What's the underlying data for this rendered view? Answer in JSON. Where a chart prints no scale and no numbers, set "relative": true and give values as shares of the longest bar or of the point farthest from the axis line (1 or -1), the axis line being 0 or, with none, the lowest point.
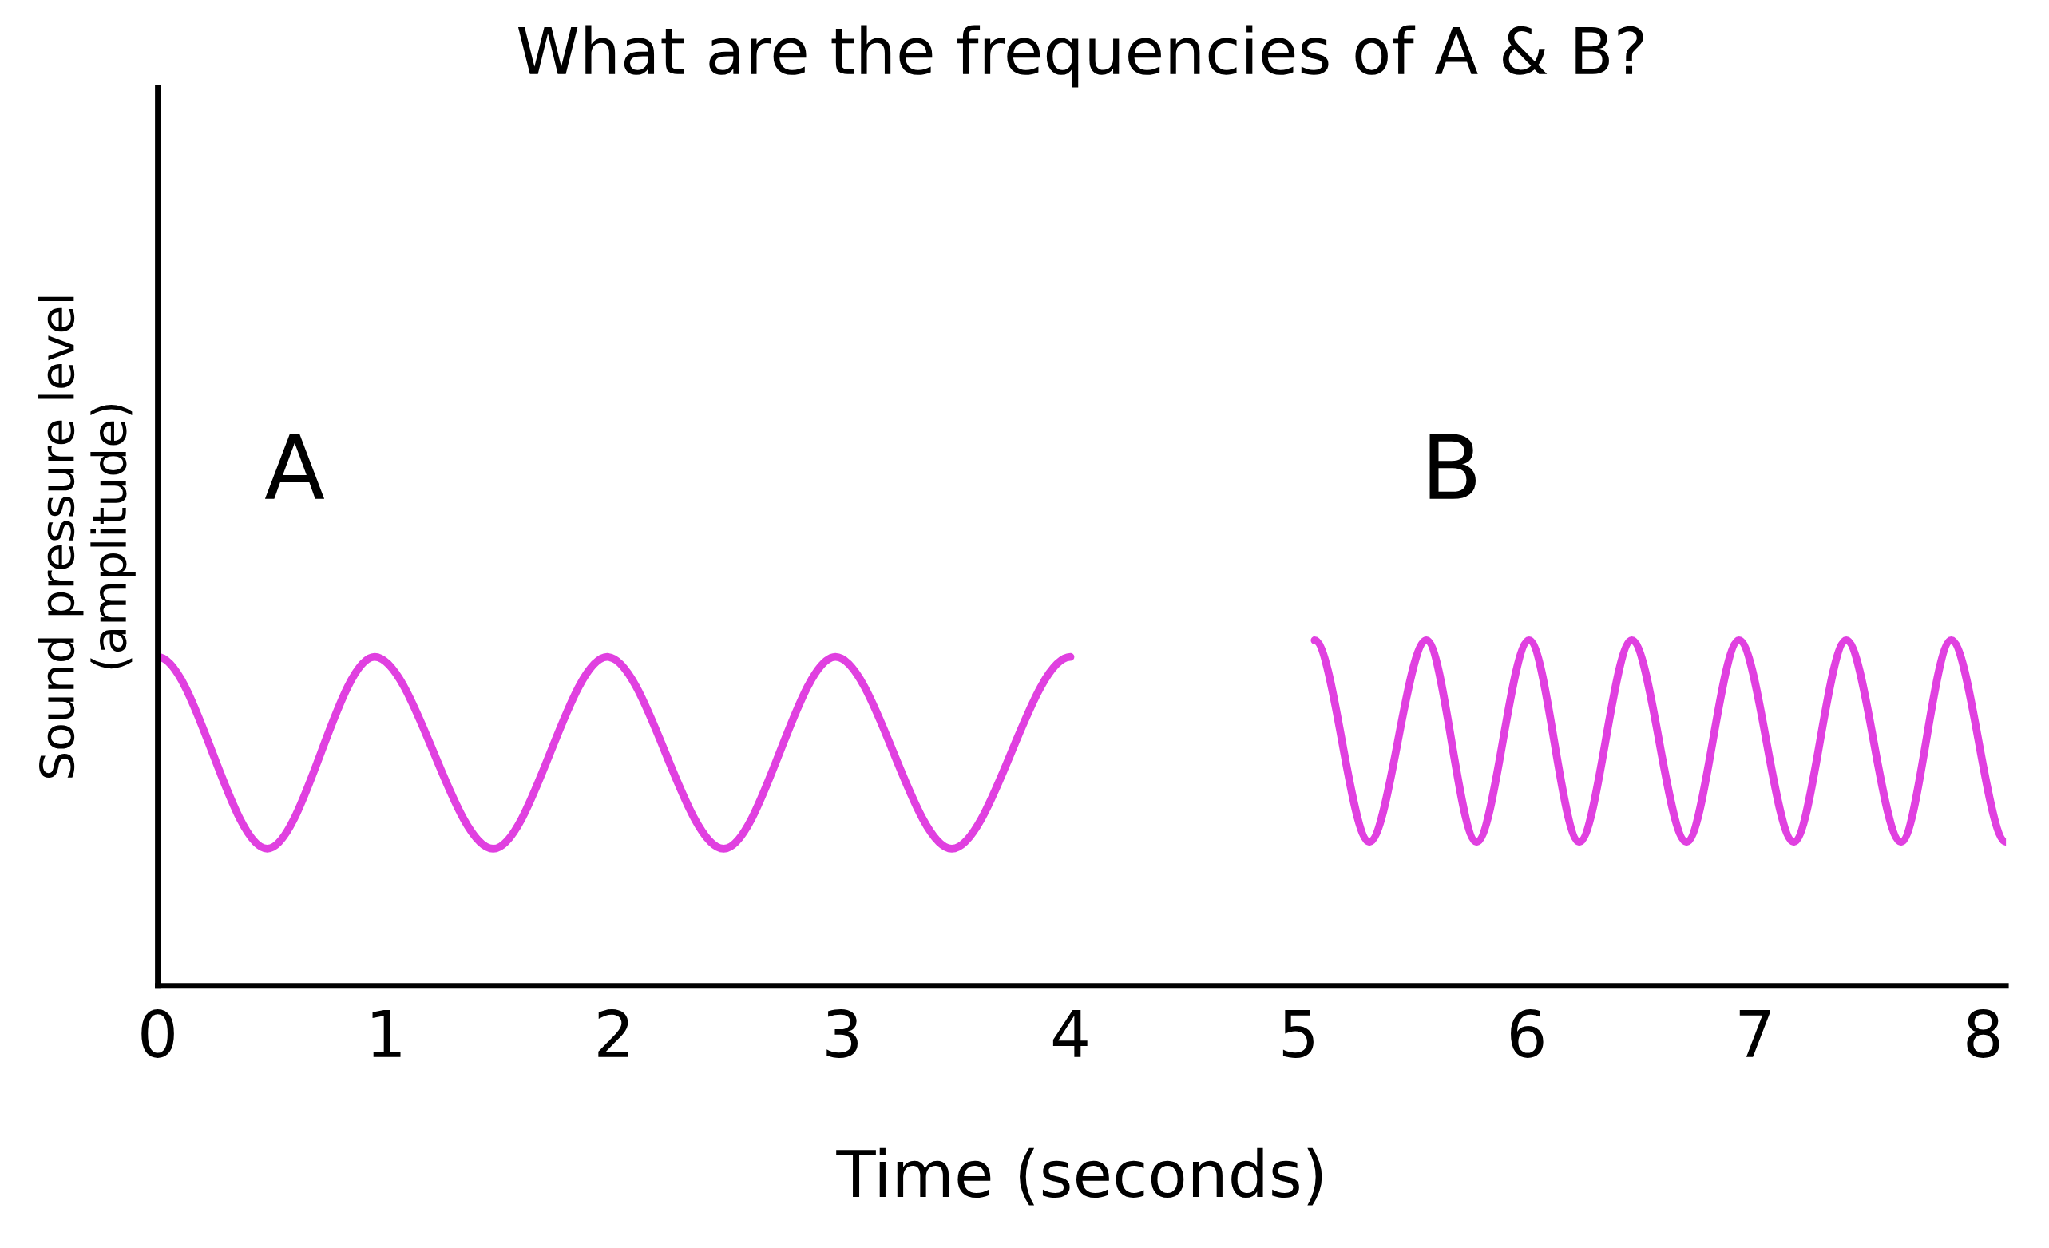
{
  "chart_data": {
    "type": "line",
    "title": "What are the frequencies of A & B?",
    "xlabel": "Time (seconds)",
    "ylabel": "Sound pressure level\n(amplitude)",
    "relative": true,
    "xlim": [
      0,
      8.1
    ],
    "xticks": [
      0,
      1,
      2,
      3,
      4,
      5,
      6,
      7,
      8
    ],
    "grid": false,
    "legend": false,
    "marker": "none",
    "line_style": "solid",
    "annotations": [
      "A",
      "B"
    ],
    "series": [
      {
        "color": "#e040e0",
        "x": [
          0,
          0.48,
          0.95,
          1.47,
          1.97,
          2.48,
          2.97,
          3.48,
          4.0
        ],
        "values": [
          0.952,
          0.397,
          0.952,
          0.397,
          0.952,
          0.397,
          0.952,
          0.397,
          0.952
        ]
      },
      {
        "color": "#e040e0",
        "x": [
          5.07,
          5.31,
          5.56,
          5.78,
          6.01,
          6.23,
          6.46,
          6.7,
          6.93,
          7.17,
          7.4,
          7.64,
          7.86,
          8.1
        ],
        "values": [
          1.0,
          0.417,
          1.0,
          0.417,
          1.0,
          0.417,
          1.0,
          0.417,
          1.0,
          0.417,
          1.0,
          0.417,
          1.0,
          0.417
        ]
      }
    ]
  }
}
